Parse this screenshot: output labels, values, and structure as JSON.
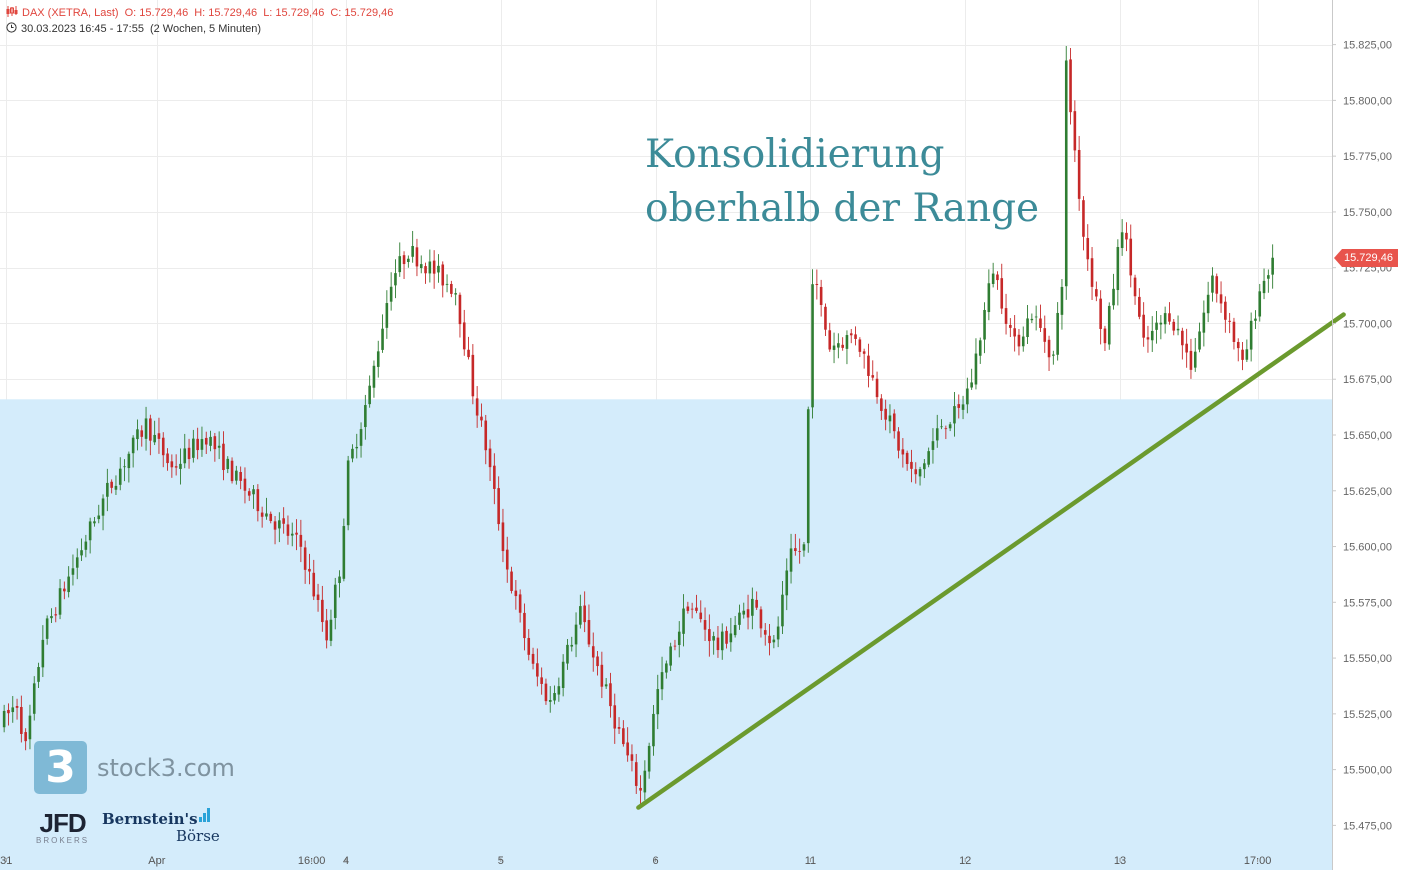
{
  "header": {
    "instrument": "DAX (XETRA, Last)",
    "open": "O: 15.729,46",
    "high": "H: 15.729,46",
    "low": "L: 15.729,46",
    "close": "C: 15.729,46",
    "range": "30.03.2023 16:45 - 17:55",
    "interval": "(2 Wochen, 5 Minuten)"
  },
  "annotation": {
    "line1": "Konsolidierung",
    "line2": "oberhalb der Range"
  },
  "last_price_label": "15.729,46",
  "logos": {
    "stock3_glyph": "3",
    "stock3_text": "stock3.com",
    "jfd": "JFD",
    "jfd_sub": "BROKERS",
    "bernstein_line1": "Bernstein's",
    "bernstein_line2": "Börse"
  },
  "colors": {
    "up": "#2f7d32",
    "down": "#c62828",
    "range_fill": "#d4ecfb",
    "trendline": "#6b9a2e",
    "annotation": "#3c8b98",
    "last_price": "#e8544c"
  },
  "chart_data": {
    "type": "candlestick",
    "title": "",
    "y_axis_position": "right",
    "ylim": [
      15455,
      15845
    ],
    "y_ticks": [
      15475,
      15500,
      15525,
      15550,
      15575,
      15600,
      15625,
      15650,
      15675,
      15700,
      15725,
      15750,
      15775,
      15800,
      15825
    ],
    "y_tick_labels": [
      "15.475,00",
      "15.500,00",
      "15.525,00",
      "15.550,00",
      "15.575,00",
      "15.600,00",
      "15.625,00",
      "15.650,00",
      "15.675,00",
      "15.700,00",
      "15.725,00",
      "15.750,00",
      "15.775,00",
      "15.800,00",
      "15.825,00"
    ],
    "x_ticks": [
      {
        "label": "31",
        "bar": 1
      },
      {
        "label": "Apr",
        "bar": 36
      },
      {
        "label": "16:00",
        "bar": 72
      },
      {
        "label": "4",
        "bar": 80
      },
      {
        "label": "5",
        "bar": 116
      },
      {
        "label": "6",
        "bar": 152
      },
      {
        "label": "11",
        "bar": 188
      },
      {
        "label": "12",
        "bar": 224
      },
      {
        "label": "13",
        "bar": 260
      },
      {
        "label": "17:00",
        "bar": 292
      }
    ],
    "bar_count": 296,
    "last_price": 15729.46,
    "range_zone": {
      "from": 15455,
      "to": 15666
    },
    "trendline": {
      "from": {
        "bar": 148,
        "price": 15483
      },
      "to": {
        "bar": 312,
        "price": 15704
      }
    },
    "price_path": [
      [
        0,
        15520
      ],
      [
        4,
        15530
      ],
      [
        6,
        15510
      ],
      [
        10,
        15560
      ],
      [
        18,
        15595
      ],
      [
        25,
        15625
      ],
      [
        34,
        15655
      ],
      [
        40,
        15635
      ],
      [
        48,
        15650
      ],
      [
        55,
        15630
      ],
      [
        62,
        15615
      ],
      [
        70,
        15600
      ],
      [
        76,
        15560
      ],
      [
        79,
        15590
      ],
      [
        81,
        15635
      ],
      [
        86,
        15670
      ],
      [
        91,
        15720
      ],
      [
        95,
        15733
      ],
      [
        100,
        15725
      ],
      [
        106,
        15715
      ],
      [
        110,
        15670
      ],
      [
        113,
        15645
      ],
      [
        118,
        15590
      ],
      [
        124,
        15545
      ],
      [
        128,
        15530
      ],
      [
        135,
        15570
      ],
      [
        140,
        15540
      ],
      [
        146,
        15505
      ],
      [
        149,
        15490
      ],
      [
        153,
        15535
      ],
      [
        160,
        15575
      ],
      [
        167,
        15555
      ],
      [
        175,
        15575
      ],
      [
        180,
        15555
      ],
      [
        184,
        15595
      ],
      [
        187,
        15600
      ],
      [
        189,
        15722
      ],
      [
        193,
        15690
      ],
      [
        199,
        15695
      ],
      [
        205,
        15665
      ],
      [
        210,
        15640
      ],
      [
        213,
        15630
      ],
      [
        219,
        15655
      ],
      [
        223,
        15660
      ],
      [
        226,
        15675
      ],
      [
        231,
        15725
      ],
      [
        236,
        15690
      ],
      [
        240,
        15705
      ],
      [
        245,
        15685
      ],
      [
        247,
        15720
      ],
      [
        248,
        15815
      ],
      [
        252,
        15740
      ],
      [
        257,
        15690
      ],
      [
        261,
        15745
      ],
      [
        266,
        15690
      ],
      [
        272,
        15705
      ],
      [
        277,
        15682
      ],
      [
        282,
        15720
      ],
      [
        286,
        15700
      ],
      [
        289,
        15680
      ],
      [
        293,
        15715
      ],
      [
        296,
        15729
      ]
    ]
  }
}
